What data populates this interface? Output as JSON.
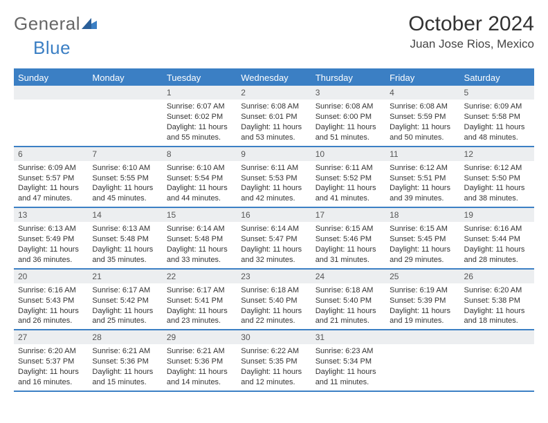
{
  "logo": {
    "part1": "General",
    "part2": "Blue"
  },
  "title": "October 2024",
  "location": "Juan Jose Rios, Mexico",
  "colors": {
    "accent": "#3b7fc4",
    "dayhead_bg": "#3b7fc4",
    "dayhead_text": "#ffffff",
    "daynum_bg": "#eceef0",
    "border": "#3b7fc4",
    "text": "#333333",
    "background": "#ffffff"
  },
  "dayNames": [
    "Sunday",
    "Monday",
    "Tuesday",
    "Wednesday",
    "Thursday",
    "Friday",
    "Saturday"
  ],
  "weeks": [
    [
      null,
      null,
      {
        "n": "1",
        "sr": "Sunrise: 6:07 AM",
        "ss": "Sunset: 6:02 PM",
        "dl": "Daylight: 11 hours and 55 minutes."
      },
      {
        "n": "2",
        "sr": "Sunrise: 6:08 AM",
        "ss": "Sunset: 6:01 PM",
        "dl": "Daylight: 11 hours and 53 minutes."
      },
      {
        "n": "3",
        "sr": "Sunrise: 6:08 AM",
        "ss": "Sunset: 6:00 PM",
        "dl": "Daylight: 11 hours and 51 minutes."
      },
      {
        "n": "4",
        "sr": "Sunrise: 6:08 AM",
        "ss": "Sunset: 5:59 PM",
        "dl": "Daylight: 11 hours and 50 minutes."
      },
      {
        "n": "5",
        "sr": "Sunrise: 6:09 AM",
        "ss": "Sunset: 5:58 PM",
        "dl": "Daylight: 11 hours and 48 minutes."
      }
    ],
    [
      {
        "n": "6",
        "sr": "Sunrise: 6:09 AM",
        "ss": "Sunset: 5:57 PM",
        "dl": "Daylight: 11 hours and 47 minutes."
      },
      {
        "n": "7",
        "sr": "Sunrise: 6:10 AM",
        "ss": "Sunset: 5:55 PM",
        "dl": "Daylight: 11 hours and 45 minutes."
      },
      {
        "n": "8",
        "sr": "Sunrise: 6:10 AM",
        "ss": "Sunset: 5:54 PM",
        "dl": "Daylight: 11 hours and 44 minutes."
      },
      {
        "n": "9",
        "sr": "Sunrise: 6:11 AM",
        "ss": "Sunset: 5:53 PM",
        "dl": "Daylight: 11 hours and 42 minutes."
      },
      {
        "n": "10",
        "sr": "Sunrise: 6:11 AM",
        "ss": "Sunset: 5:52 PM",
        "dl": "Daylight: 11 hours and 41 minutes."
      },
      {
        "n": "11",
        "sr": "Sunrise: 6:12 AM",
        "ss": "Sunset: 5:51 PM",
        "dl": "Daylight: 11 hours and 39 minutes."
      },
      {
        "n": "12",
        "sr": "Sunrise: 6:12 AM",
        "ss": "Sunset: 5:50 PM",
        "dl": "Daylight: 11 hours and 38 minutes."
      }
    ],
    [
      {
        "n": "13",
        "sr": "Sunrise: 6:13 AM",
        "ss": "Sunset: 5:49 PM",
        "dl": "Daylight: 11 hours and 36 minutes."
      },
      {
        "n": "14",
        "sr": "Sunrise: 6:13 AM",
        "ss": "Sunset: 5:48 PM",
        "dl": "Daylight: 11 hours and 35 minutes."
      },
      {
        "n": "15",
        "sr": "Sunrise: 6:14 AM",
        "ss": "Sunset: 5:48 PM",
        "dl": "Daylight: 11 hours and 33 minutes."
      },
      {
        "n": "16",
        "sr": "Sunrise: 6:14 AM",
        "ss": "Sunset: 5:47 PM",
        "dl": "Daylight: 11 hours and 32 minutes."
      },
      {
        "n": "17",
        "sr": "Sunrise: 6:15 AM",
        "ss": "Sunset: 5:46 PM",
        "dl": "Daylight: 11 hours and 31 minutes."
      },
      {
        "n": "18",
        "sr": "Sunrise: 6:15 AM",
        "ss": "Sunset: 5:45 PM",
        "dl": "Daylight: 11 hours and 29 minutes."
      },
      {
        "n": "19",
        "sr": "Sunrise: 6:16 AM",
        "ss": "Sunset: 5:44 PM",
        "dl": "Daylight: 11 hours and 28 minutes."
      }
    ],
    [
      {
        "n": "20",
        "sr": "Sunrise: 6:16 AM",
        "ss": "Sunset: 5:43 PM",
        "dl": "Daylight: 11 hours and 26 minutes."
      },
      {
        "n": "21",
        "sr": "Sunrise: 6:17 AM",
        "ss": "Sunset: 5:42 PM",
        "dl": "Daylight: 11 hours and 25 minutes."
      },
      {
        "n": "22",
        "sr": "Sunrise: 6:17 AM",
        "ss": "Sunset: 5:41 PM",
        "dl": "Daylight: 11 hours and 23 minutes."
      },
      {
        "n": "23",
        "sr": "Sunrise: 6:18 AM",
        "ss": "Sunset: 5:40 PM",
        "dl": "Daylight: 11 hours and 22 minutes."
      },
      {
        "n": "24",
        "sr": "Sunrise: 6:18 AM",
        "ss": "Sunset: 5:40 PM",
        "dl": "Daylight: 11 hours and 21 minutes."
      },
      {
        "n": "25",
        "sr": "Sunrise: 6:19 AM",
        "ss": "Sunset: 5:39 PM",
        "dl": "Daylight: 11 hours and 19 minutes."
      },
      {
        "n": "26",
        "sr": "Sunrise: 6:20 AM",
        "ss": "Sunset: 5:38 PM",
        "dl": "Daylight: 11 hours and 18 minutes."
      }
    ],
    [
      {
        "n": "27",
        "sr": "Sunrise: 6:20 AM",
        "ss": "Sunset: 5:37 PM",
        "dl": "Daylight: 11 hours and 16 minutes."
      },
      {
        "n": "28",
        "sr": "Sunrise: 6:21 AM",
        "ss": "Sunset: 5:36 PM",
        "dl": "Daylight: 11 hours and 15 minutes."
      },
      {
        "n": "29",
        "sr": "Sunrise: 6:21 AM",
        "ss": "Sunset: 5:36 PM",
        "dl": "Daylight: 11 hours and 14 minutes."
      },
      {
        "n": "30",
        "sr": "Sunrise: 6:22 AM",
        "ss": "Sunset: 5:35 PM",
        "dl": "Daylight: 11 hours and 12 minutes."
      },
      {
        "n": "31",
        "sr": "Sunrise: 6:23 AM",
        "ss": "Sunset: 5:34 PM",
        "dl": "Daylight: 11 hours and 11 minutes."
      },
      null,
      null
    ]
  ]
}
